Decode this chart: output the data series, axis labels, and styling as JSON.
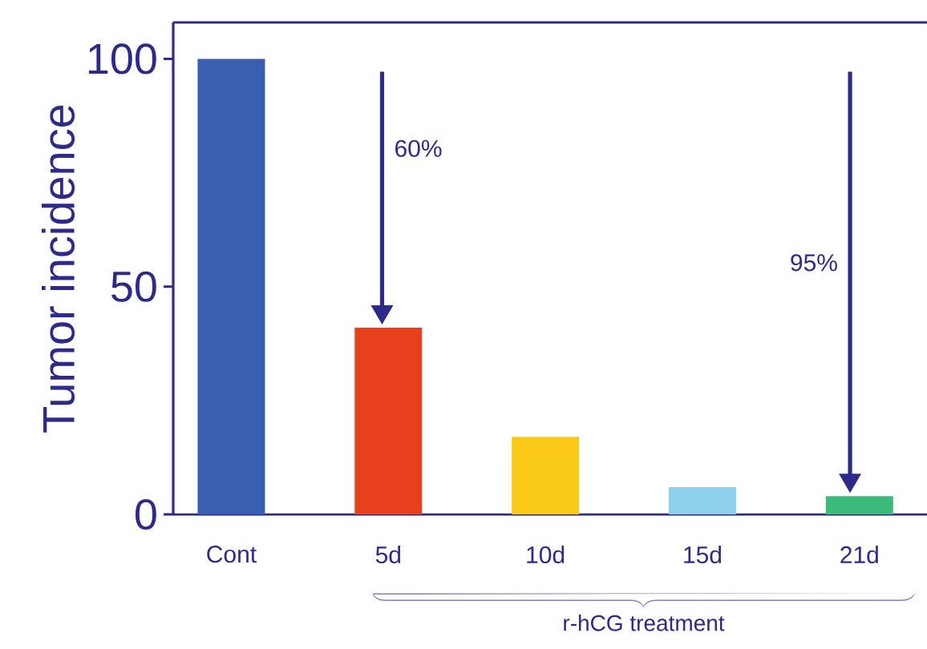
{
  "chart_data": {
    "type": "bar",
    "xlabel": "r-hCG treatment",
    "ylabel": "Tumor incidence",
    "categories": [
      "Cont",
      "5d",
      "10d",
      "15d",
      "21d"
    ],
    "values": [
      100,
      41,
      17,
      6,
      4
    ],
    "colors": [
      "#3a5fb0",
      "#e8401c",
      "#fbc918",
      "#8ed0ec",
      "#3cba7c"
    ],
    "ylim": [
      0,
      108
    ],
    "yticks": [
      0,
      50,
      100
    ],
    "grid": false,
    "annotations": [
      "60%",
      "95%"
    ]
  }
}
